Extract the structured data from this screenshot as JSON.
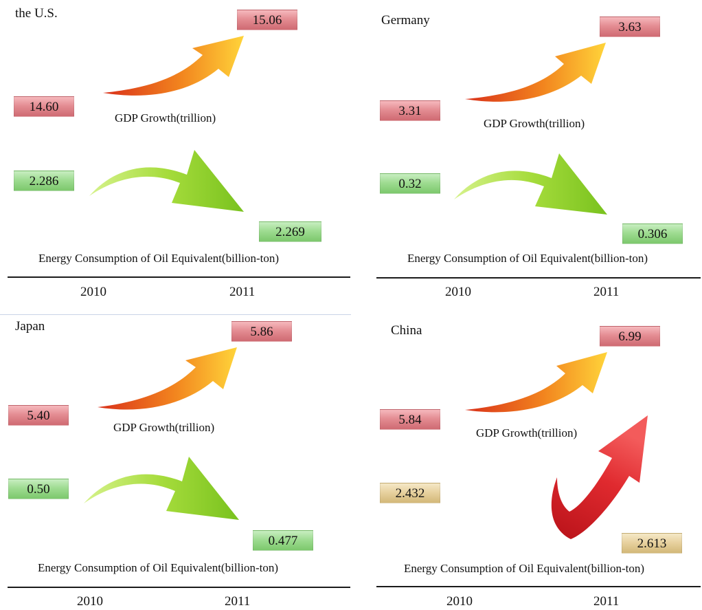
{
  "panels": [
    {
      "title": "the U.S.",
      "gdp": {
        "label": "GDP Growth(trillion)",
        "v2010": "14.60",
        "v2011": "15.06"
      },
      "energy": {
        "label": "Energy Consumption of Oil Equivalent(billion-ton)",
        "v2010": "2.286",
        "v2011": "2.269"
      },
      "years": [
        "2010",
        "2011"
      ]
    },
    {
      "title": "Germany",
      "gdp": {
        "label": "GDP Growth(trillion)",
        "v2010": "3.31",
        "v2011": "3.63"
      },
      "energy": {
        "label": "Energy Consumption of Oil Equivalent(billion-ton)",
        "v2010": "0.32",
        "v2011": "0.306"
      },
      "years": [
        "2010",
        "2011"
      ]
    },
    {
      "title": "Japan",
      "gdp": {
        "label": "GDP Growth(trillion)",
        "v2010": "5.40",
        "v2011": "5.86"
      },
      "energy": {
        "label": "Energy Consumption of Oil Equivalent(billion-ton)",
        "v2010": "0.50",
        "v2011": "0.477"
      },
      "years": [
        "2010",
        "2011"
      ]
    },
    {
      "title": "China",
      "gdp": {
        "label": "GDP Growth(trillion)",
        "v2010": "5.84",
        "v2011": "6.99"
      },
      "energy": {
        "label": "Energy Consumption of Oil Equivalent(billion-ton)",
        "v2010": "2.432",
        "v2011": "2.613"
      },
      "years": [
        "2010",
        "2011"
      ]
    }
  ],
  "colors": {
    "gdp_box": "#e48d93",
    "energy_box_decrease": "#9fdc92",
    "energy_box_increase": "#e8d2a0",
    "arrow_up_orange": "#f07a1c",
    "arrow_down_green": "#8ccf2c",
    "arrow_up_red": "#d8232a"
  }
}
